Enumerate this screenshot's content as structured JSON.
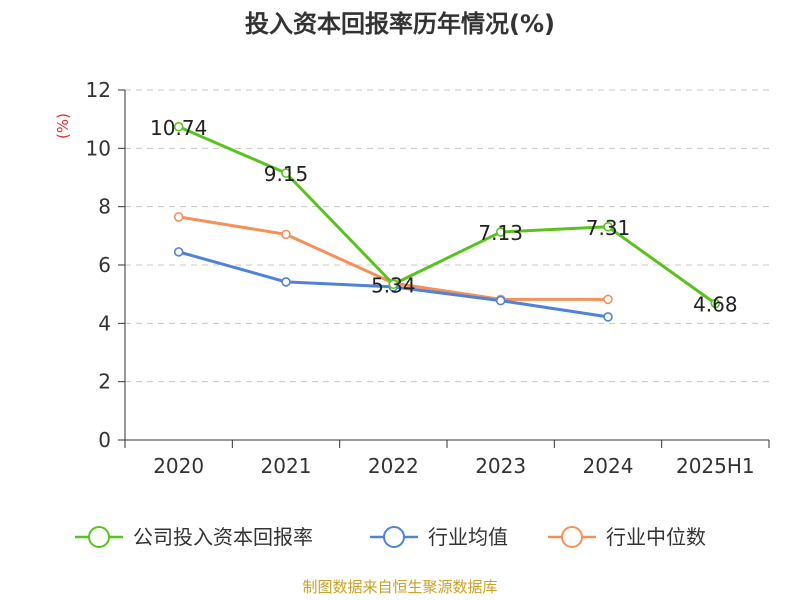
{
  "source": "制图数据来自恒生聚源数据库",
  "chart_data": {
    "type": "line",
    "title": "投入资本回报率历年情况(%)",
    "unit_label": "(%)",
    "categories": [
      "2020",
      "2021",
      "2022",
      "2023",
      "2024",
      "2025H1"
    ],
    "ylim": [
      0,
      12
    ],
    "yticks": [
      "0",
      "2",
      "4",
      "6",
      "8",
      "10",
      "12"
    ],
    "grid": true,
    "legend_position": "bottom",
    "series": [
      {
        "name": "公司投入资本回报率",
        "color": "#5ac21e",
        "values": [
          10.74,
          9.15,
          5.34,
          7.13,
          7.31,
          4.68
        ],
        "labels": [
          "10.74",
          "9.15",
          "5.34",
          "7.13",
          "7.31",
          "4.68"
        ]
      },
      {
        "name": "行业均值",
        "color": "#4f82d8",
        "values": [
          6.45,
          5.42,
          5.25,
          4.78,
          4.22,
          null
        ]
      },
      {
        "name": "行业中位数",
        "color": "#f5905a",
        "values": [
          7.65,
          7.05,
          5.38,
          4.82,
          4.82,
          null
        ]
      }
    ]
  }
}
